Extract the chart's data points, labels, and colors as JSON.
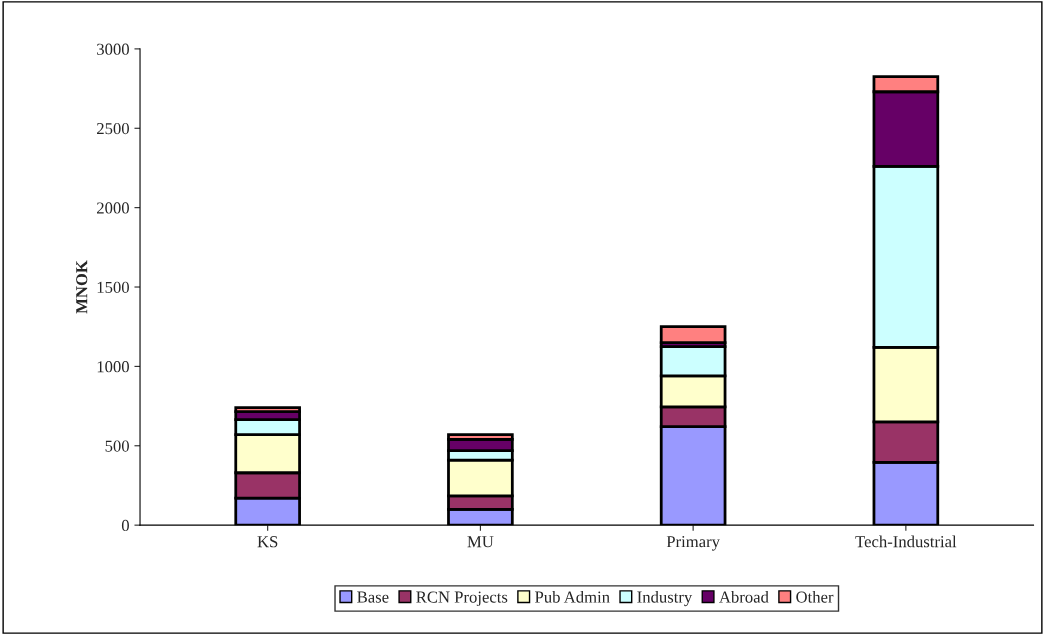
{
  "chart_data": {
    "type": "bar",
    "stacked": true,
    "ylabel": "MNOK",
    "categories": [
      "KS",
      "MU",
      "Primary",
      "Tech-Industrial"
    ],
    "series": [
      {
        "name": "Base",
        "color": "#9999ff",
        "values": [
          170,
          100,
          620,
          395
        ]
      },
      {
        "name": "RCN Projects",
        "color": "#993366",
        "values": [
          160,
          85,
          125,
          255
        ]
      },
      {
        "name": "Pub Admin",
        "color": "#ffffcc",
        "values": [
          240,
          225,
          195,
          470
        ]
      },
      {
        "name": "Industry",
        "color": "#ccffff",
        "values": [
          95,
          60,
          185,
          1140
        ]
      },
      {
        "name": "Abroad",
        "color": "#660066",
        "values": [
          50,
          70,
          25,
          470
        ]
      },
      {
        "name": "Other",
        "color": "#ff8080",
        "values": [
          25,
          30,
          100,
          95
        ]
      }
    ],
    "ylim": [
      0,
      3000
    ],
    "yticks": [
      0,
      500,
      1000,
      1500,
      2000,
      2500,
      3000
    ],
    "grid": false,
    "legend": "bottom"
  }
}
